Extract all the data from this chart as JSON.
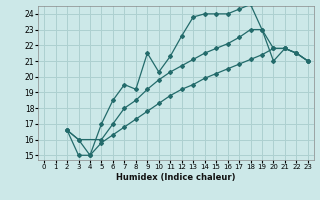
{
  "xlabel": "Humidex (Indice chaleur)",
  "bg_color": "#cce8e8",
  "grid_color": "#add0d0",
  "line_color": "#236b6b",
  "xlim": [
    -0.5,
    23.5
  ],
  "ylim": [
    14.7,
    24.5
  ],
  "xticks": [
    0,
    1,
    2,
    3,
    4,
    5,
    6,
    7,
    8,
    9,
    10,
    11,
    12,
    13,
    14,
    15,
    16,
    17,
    18,
    19,
    20,
    21,
    22,
    23
  ],
  "yticks": [
    15,
    16,
    17,
    18,
    19,
    20,
    21,
    22,
    23,
    24
  ],
  "line1_x": [
    2,
    3,
    4,
    5,
    6,
    7,
    8,
    9,
    10,
    11,
    12,
    13,
    14,
    15,
    16,
    17,
    18,
    19,
    20,
    21,
    22,
    23
  ],
  "line1_y": [
    16.6,
    16.0,
    15.0,
    17.0,
    18.5,
    19.5,
    19.2,
    21.5,
    20.3,
    21.3,
    22.6,
    23.8,
    24.0,
    24.0,
    24.0,
    24.3,
    24.6,
    23.0,
    21.0,
    21.8,
    21.5,
    21.0
  ],
  "line2_x": [
    2,
    3,
    5,
    6,
    7,
    8,
    9,
    10,
    11,
    12,
    13,
    14,
    15,
    16,
    17,
    18,
    19,
    20,
    21,
    22,
    23
  ],
  "line2_y": [
    16.6,
    16.0,
    16.0,
    17.0,
    18.0,
    18.5,
    19.2,
    19.8,
    20.3,
    20.7,
    21.1,
    21.5,
    21.8,
    22.1,
    22.5,
    23.0,
    23.0,
    21.8,
    21.8,
    21.5,
    21.0
  ],
  "line3_x": [
    2,
    3,
    4,
    5,
    6,
    7,
    8,
    9,
    10,
    11,
    12,
    13,
    14,
    15,
    16,
    17,
    18,
    19,
    20,
    21,
    22,
    23
  ],
  "line3_y": [
    16.6,
    15.0,
    15.0,
    15.8,
    16.3,
    16.8,
    17.3,
    17.8,
    18.3,
    18.8,
    19.2,
    19.5,
    19.9,
    20.2,
    20.5,
    20.8,
    21.1,
    21.4,
    21.8,
    21.8,
    21.5,
    21.0
  ]
}
